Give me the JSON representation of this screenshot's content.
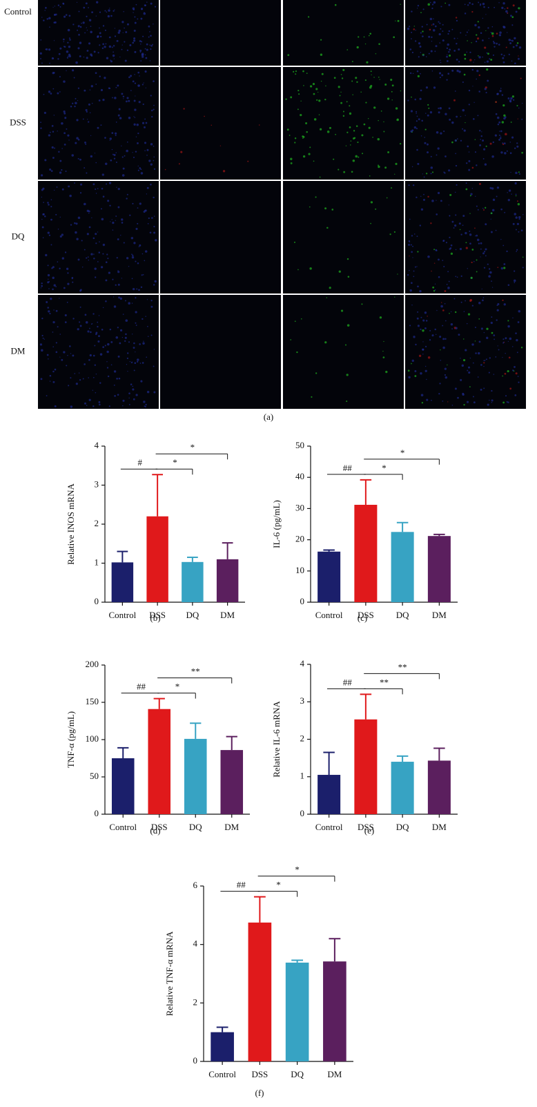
{
  "panel_a": {
    "rows": [
      "Control",
      "DSS",
      "DQ",
      "DM"
    ],
    "caption": "(a)"
  },
  "chart_data": [
    {
      "type": "bar",
      "y_label": "Relative INOS mRNA",
      "caption": "(b)",
      "categories": [
        "Control",
        "DSS",
        "DQ",
        "DM"
      ],
      "values": [
        1.02,
        2.2,
        1.03,
        1.1
      ],
      "errors": [
        0.28,
        1.07,
        0.12,
        0.42
      ],
      "colors": [
        "#1b1f6b",
        "#e0191b",
        "#37a3c3",
        "#5b1f5e"
      ],
      "ylim": [
        0,
        4
      ],
      "yticks": [
        0,
        1,
        2,
        3,
        4
      ],
      "brackets": [
        {
          "from": 0,
          "to": 1,
          "label": "#"
        },
        {
          "from": 1,
          "to": 2,
          "label": "*"
        },
        {
          "from": 1,
          "to": 3,
          "label": "*"
        }
      ]
    },
    {
      "type": "bar",
      "y_label": "IL-6 (pg/mL)",
      "caption": "(c)",
      "categories": [
        "Control",
        "DSS",
        "DQ",
        "DM"
      ],
      "values": [
        16.2,
        31.2,
        22.5,
        21.2
      ],
      "errors": [
        0.5,
        8,
        3,
        0.5
      ],
      "colors": [
        "#1b1f6b",
        "#e0191b",
        "#37a3c3",
        "#5b1f5e"
      ],
      "ylim": [
        0,
        50
      ],
      "yticks": [
        0,
        10,
        20,
        30,
        40,
        50
      ],
      "brackets": [
        {
          "from": 0,
          "to": 1,
          "label": "##"
        },
        {
          "from": 1,
          "to": 2,
          "label": "*"
        },
        {
          "from": 1,
          "to": 3,
          "label": "*"
        }
      ]
    },
    {
      "type": "bar",
      "y_label": "TNF-α (pg/mL)",
      "caption": "(d)",
      "categories": [
        "Control",
        "DSS",
        "DQ",
        "DM"
      ],
      "values": [
        75,
        141,
        101,
        86
      ],
      "errors": [
        14,
        14,
        21,
        18
      ],
      "colors": [
        "#1b1f6b",
        "#e0191b",
        "#37a3c3",
        "#5b1f5e"
      ],
      "ylim": [
        0,
        200
      ],
      "yticks": [
        0,
        50,
        100,
        150,
        200
      ],
      "brackets": [
        {
          "from": 0,
          "to": 1,
          "label": "##"
        },
        {
          "from": 1,
          "to": 2,
          "label": "*"
        },
        {
          "from": 1,
          "to": 3,
          "label": "**"
        }
      ]
    },
    {
      "type": "bar",
      "y_label": "Relative IL-6 mRNA",
      "caption": "(e)",
      "categories": [
        "Control",
        "DSS",
        "DQ",
        "DM"
      ],
      "values": [
        1.05,
        2.53,
        1.4,
        1.43
      ],
      "errors": [
        0.6,
        0.67,
        0.15,
        0.33
      ],
      "colors": [
        "#1b1f6b",
        "#e0191b",
        "#37a3c3",
        "#5b1f5e"
      ],
      "ylim": [
        0,
        4
      ],
      "yticks": [
        0,
        1,
        2,
        3,
        4
      ],
      "brackets": [
        {
          "from": 0,
          "to": 1,
          "label": "##"
        },
        {
          "from": 1,
          "to": 2,
          "label": "**"
        },
        {
          "from": 1,
          "to": 3,
          "label": "**"
        }
      ]
    },
    {
      "type": "bar",
      "y_label": "Relative TNF-α mRNA",
      "caption": "(f)",
      "categories": [
        "Control",
        "DSS",
        "DQ",
        "DM"
      ],
      "values": [
        1.0,
        4.75,
        3.38,
        3.42
      ],
      "errors": [
        0.17,
        0.88,
        0.08,
        0.78
      ],
      "colors": [
        "#1b1f6b",
        "#e0191b",
        "#37a3c3",
        "#5b1f5e"
      ],
      "ylim": [
        0,
        6
      ],
      "yticks": [
        0,
        2,
        4,
        6
      ],
      "brackets": [
        {
          "from": 0,
          "to": 1,
          "label": "##"
        },
        {
          "from": 1,
          "to": 2,
          "label": "*"
        },
        {
          "from": 1,
          "to": 3,
          "label": "*"
        }
      ]
    }
  ]
}
